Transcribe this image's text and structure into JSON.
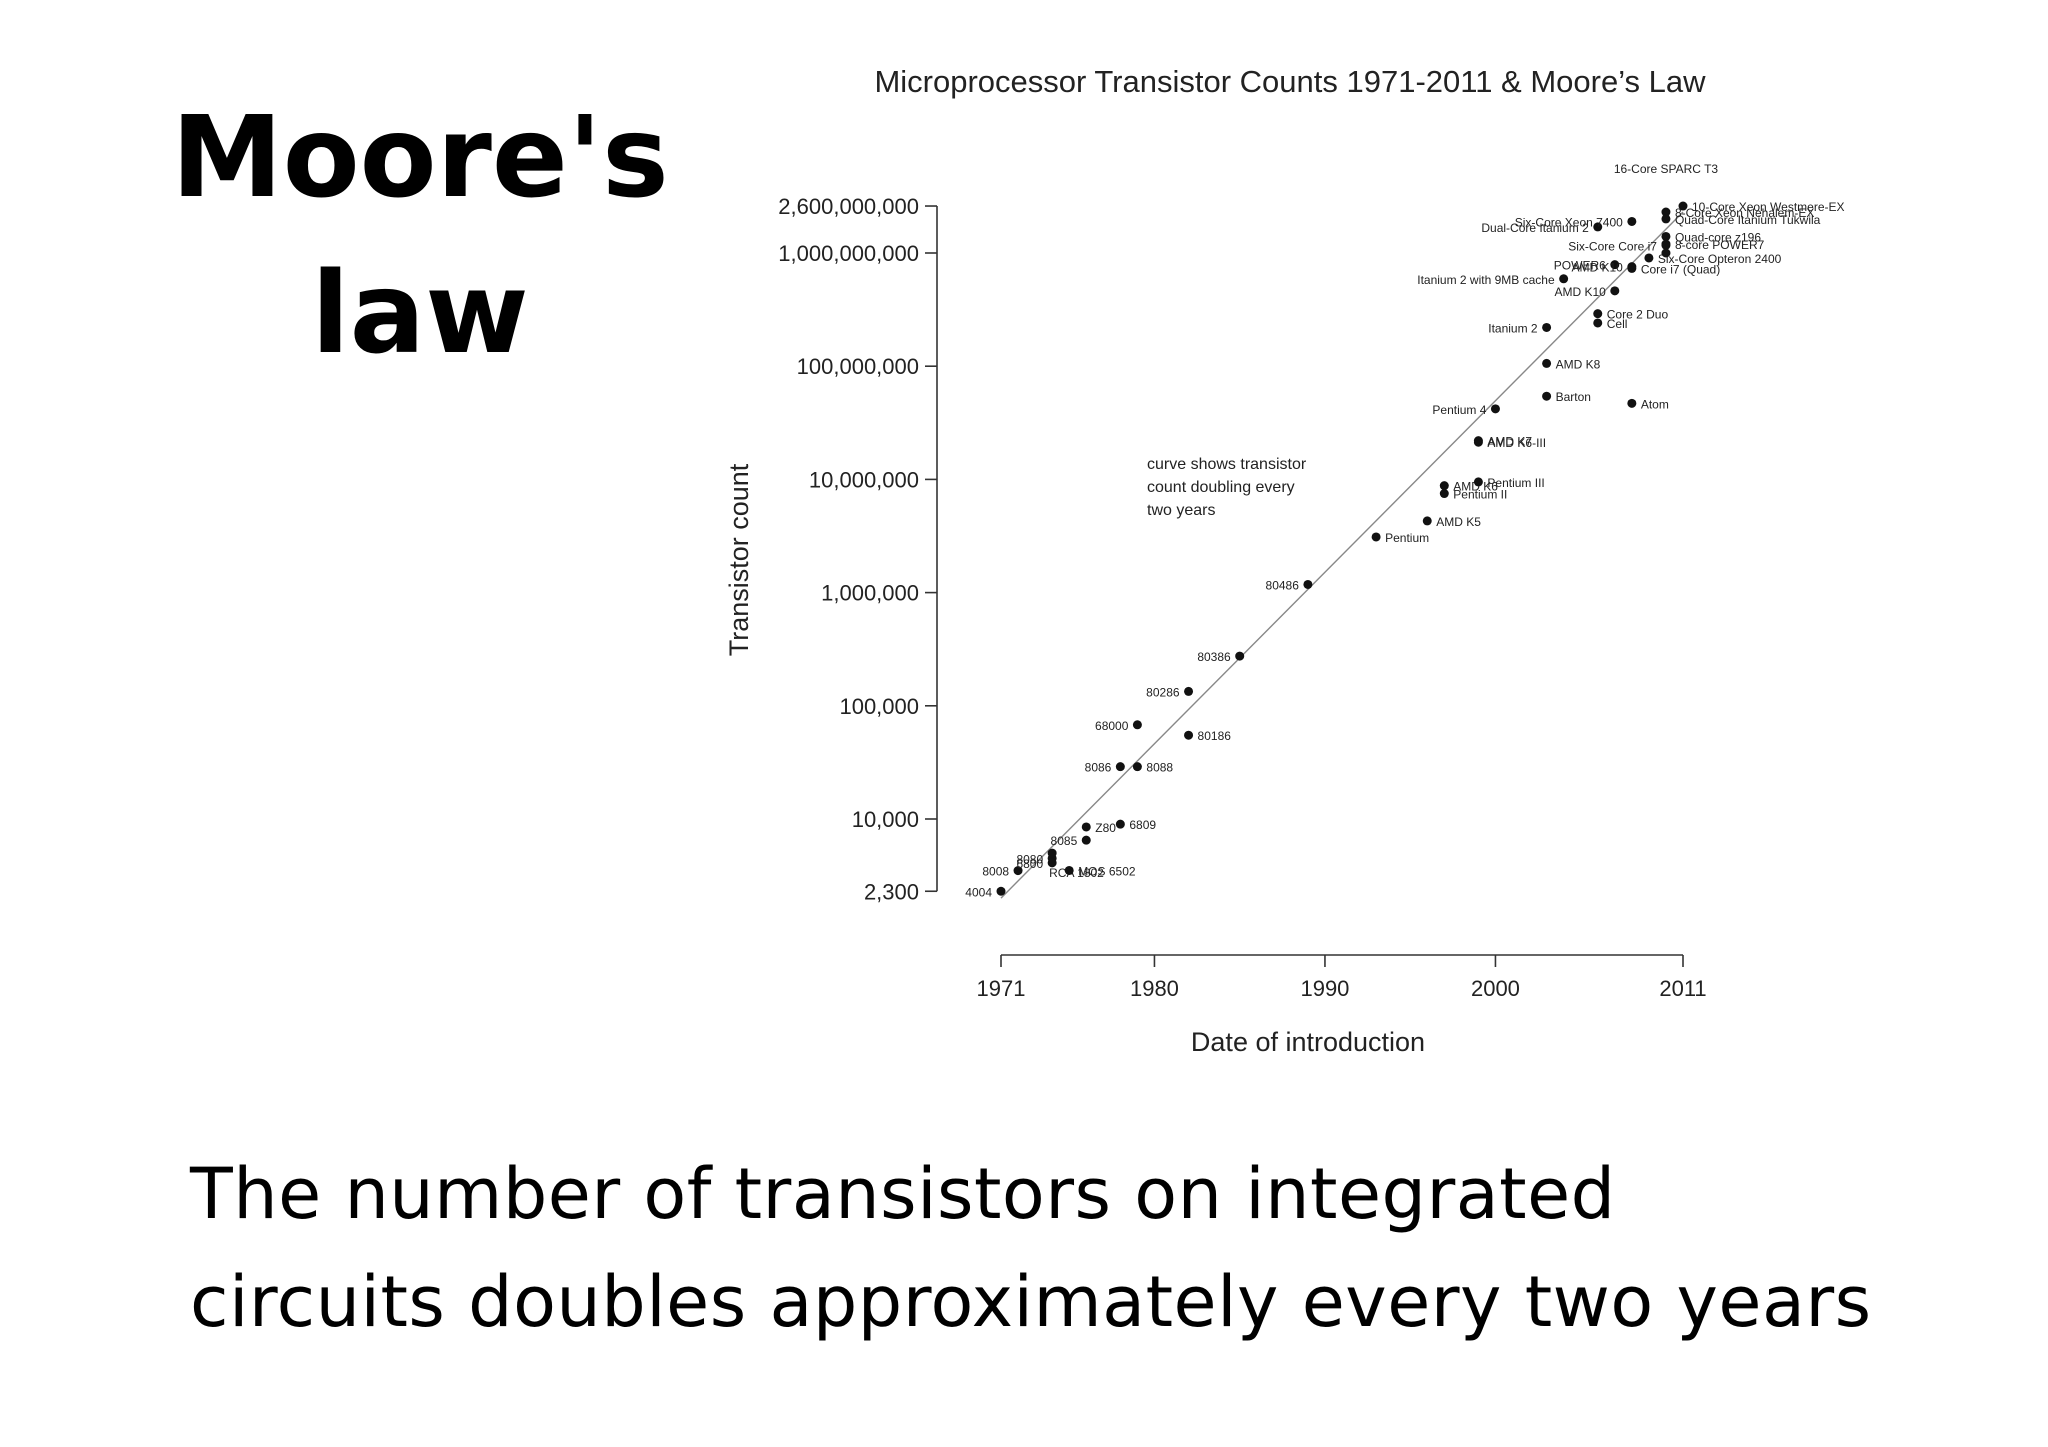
{
  "slide": {
    "title_line1": "Moore's",
    "title_line2": "law",
    "caption_line1": "The number of transistors on integrated",
    "caption_line2": "circuits doubles approximately every two years"
  },
  "chart_data": {
    "type": "scatter",
    "title": "Microprocessor Transistor Counts 1971-2011 & Moore’s Law",
    "xlabel": "Date of introduction",
    "ylabel": "Transistor count",
    "y_scale": "log",
    "xlim": [
      1971,
      2011
    ],
    "x_ticks": [
      1971,
      1980,
      1990,
      2000,
      2011
    ],
    "y_ticks": [
      {
        "value": 2300,
        "label": "2,300"
      },
      {
        "value": 10000,
        "label": "10,000"
      },
      {
        "value": 100000,
        "label": "100,000"
      },
      {
        "value": 1000000,
        "label": "1,000,000"
      },
      {
        "value": 10000000,
        "label": "10,000,000"
      },
      {
        "value": 100000000,
        "label": "100,000,000"
      },
      {
        "value": 1000000000,
        "label": "1,000,000,000"
      },
      {
        "value": 2600000000,
        "label": "2,600,000,000"
      }
    ],
    "annotation": [
      "curve shows transistor",
      "count doubling every",
      "two years"
    ],
    "trend_line": {
      "x": [
        1971,
        2011
      ],
      "y": [
        2000,
        2300000000
      ]
    },
    "grid": false,
    "points": [
      {
        "label": "4004",
        "x": 1971,
        "y": 2300,
        "side": "left"
      },
      {
        "label": "8008",
        "x": 1972,
        "y": 3500,
        "side": "left"
      },
      {
        "label": "8080",
        "x": 1974,
        "y": 4500,
        "side": "left"
      },
      {
        "label": "RCA 1802",
        "x": 1974,
        "y": 5000,
        "side": "below"
      },
      {
        "label": "8085",
        "x": 1976,
        "y": 6500,
        "side": "left"
      },
      {
        "label": "6800",
        "x": 1974,
        "y": 4100,
        "side": "left"
      },
      {
        "label": "MOS 6502",
        "x": 1975,
        "y": 3510,
        "side": "right"
      },
      {
        "label": "Z80",
        "x": 1976,
        "y": 8500,
        "side": "right"
      },
      {
        "label": "6809",
        "x": 1978,
        "y": 9000,
        "side": "right"
      },
      {
        "label": "8086",
        "x": 1978,
        "y": 29000,
        "side": "left"
      },
      {
        "label": "8088",
        "x": 1979,
        "y": 29000,
        "side": "right"
      },
      {
        "label": "68000",
        "x": 1979,
        "y": 68000,
        "side": "left"
      },
      {
        "label": "80186",
        "x": 1982,
        "y": 55000,
        "side": "right"
      },
      {
        "label": "80286",
        "x": 1982,
        "y": 134000,
        "side": "left"
      },
      {
        "label": "80386",
        "x": 1985,
        "y": 275000,
        "side": "left"
      },
      {
        "label": "80486",
        "x": 1989,
        "y": 1180000,
        "side": "left"
      },
      {
        "label": "Pentium",
        "x": 1993,
        "y": 3100000,
        "side": "right"
      },
      {
        "label": "AMD K5",
        "x": 1996,
        "y": 4300000,
        "side": "right"
      },
      {
        "label": "Pentium II",
        "x": 1997,
        "y": 7500000,
        "side": "right"
      },
      {
        "label": "AMD K6",
        "x": 1997,
        "y": 8800000,
        "side": "right"
      },
      {
        "label": "Pentium III",
        "x": 1999,
        "y": 9500000,
        "side": "right"
      },
      {
        "label": "AMD K6-III",
        "x": 1999,
        "y": 21300000,
        "side": "right"
      },
      {
        "label": "AMD K7",
        "x": 1999,
        "y": 22000000,
        "side": "right"
      },
      {
        "label": "Pentium 4",
        "x": 2000,
        "y": 42000000,
        "side": "left"
      },
      {
        "label": "Barton",
        "x": 2003,
        "y": 54300000,
        "side": "right"
      },
      {
        "label": "AMD K8",
        "x": 2003,
        "y": 105900000,
        "side": "right"
      },
      {
        "label": "Itanium 2",
        "x": 2003,
        "y": 220000000,
        "side": "left"
      },
      {
        "label": "Atom",
        "x": 2008,
        "y": 47000000,
        "side": "right"
      },
      {
        "label": "Cell",
        "x": 2006,
        "y": 241000000,
        "side": "right"
      },
      {
        "label": "Core 2 Duo",
        "x": 2006,
        "y": 291000000,
        "side": "right"
      },
      {
        "label": "AMD K10",
        "x": 2007,
        "y": 463000000,
        "side": "left"
      },
      {
        "label": "Itanium 2 with 9MB cache",
        "x": 2004,
        "y": 592000000,
        "side": "left"
      },
      {
        "label": "POWER6",
        "x": 2007,
        "y": 789000000,
        "side": "left"
      },
      {
        "label": "AMD K10",
        "x": 2008,
        "y": 758000000,
        "side": "left"
      },
      {
        "label": "Core i7 (Quad)",
        "x": 2008,
        "y": 731000000,
        "side": "right"
      },
      {
        "label": "Six-Core Opteron 2400",
        "x": 2009,
        "y": 904000000,
        "side": "right"
      },
      {
        "label": "Dual-Core Itanium 2",
        "x": 2006,
        "y": 1700000000,
        "side": "left"
      },
      {
        "label": "Six-Core Xeon 7400",
        "x": 2008,
        "y": 1900000000,
        "side": "left"
      },
      {
        "label": "8-Core Xeon Nehalem-EX",
        "x": 2010,
        "y": 2300000000,
        "side": "right"
      },
      {
        "label": "Quad-Core Itanium Tukwila",
        "x": 2010,
        "y": 2000000000,
        "side": "right"
      },
      {
        "label": "Six-Core Core i7",
        "x": 2010,
        "y": 1170000000,
        "side": "left"
      },
      {
        "label": "Quad-core z196",
        "x": 2010,
        "y": 1400000000,
        "side": "right"
      },
      {
        "label": "8-core POWER7",
        "x": 2010,
        "y": 1200000000,
        "side": "right"
      },
      {
        "label": "16-Core SPARC T3",
        "x": 2010,
        "y": 1000000000,
        "side": "above"
      },
      {
        "label": "10-Core Xeon Westmere-EX",
        "x": 2011,
        "y": 2600000000,
        "side": "right"
      }
    ]
  }
}
